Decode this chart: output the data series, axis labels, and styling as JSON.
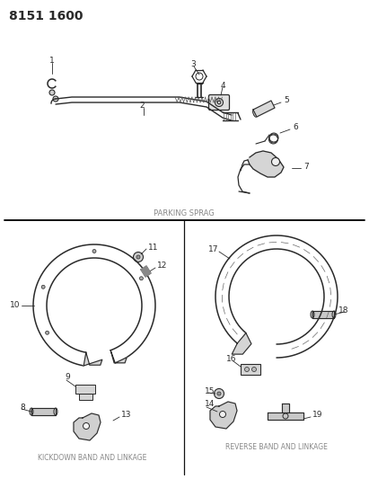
{
  "title_code": "8151 1600",
  "bg_color": "#ffffff",
  "lc": "#2a2a2a",
  "tc": "#2a2a2a",
  "gc": "#888888",
  "parking_sprag_label": "PARKING SPRAG",
  "kickdown_label": "KICKDOWN BAND AND LINKAGE",
  "reverse_label": "REVERSE BAND AND LINKAGE",
  "figw": 4.11,
  "figh": 5.33,
  "dpi": 100
}
